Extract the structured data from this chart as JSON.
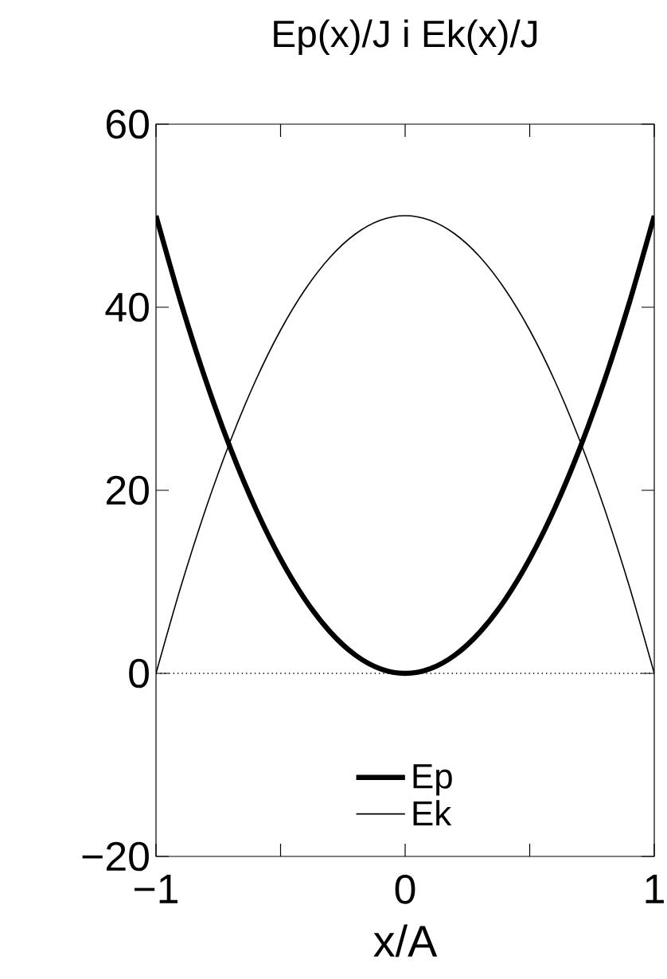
{
  "chart_data": {
    "type": "line",
    "title": "Ep(x)/J i Ek(x)/J",
    "xlabel": "x/A",
    "x": [
      -1,
      -0.9,
      -0.8,
      -0.7,
      -0.6,
      -0.5,
      -0.4,
      -0.3,
      -0.2,
      -0.1,
      0,
      0.1,
      0.2,
      0.3,
      0.4,
      0.5,
      0.6,
      0.7,
      0.8,
      0.9,
      1
    ],
    "series": [
      {
        "name": "Ep",
        "color": "#000000",
        "values": [
          50,
          40.5,
          32,
          24.5,
          18,
          12.5,
          8,
          4.5,
          2,
          0.5,
          0,
          0.5,
          2,
          4.5,
          8,
          12.5,
          18,
          24.5,
          32,
          40.5,
          50
        ]
      },
      {
        "name": "Ek",
        "color": "#000000",
        "values": [
          0,
          9.5,
          18,
          25.5,
          32,
          37.5,
          42,
          45.5,
          48,
          49.5,
          50,
          49.5,
          48,
          45.5,
          42,
          37.5,
          32,
          25.5,
          18,
          9.5,
          0
        ]
      }
    ],
    "xlim": [
      -1,
      1
    ],
    "xticks": [
      {
        "value": -1,
        "label": "−1"
      },
      {
        "value": -0.5,
        "label": null
      },
      0,
      {
        "value": 0.5,
        "label": null
      },
      1
    ],
    "ylim": [
      -20,
      60
    ],
    "yticks": [
      {
        "value": -20,
        "label": "−20"
      },
      0,
      20,
      40,
      60
    ],
    "ref_lines": [
      {
        "axis": "y",
        "value": 0,
        "label": null,
        "color": "#000000",
        "line_style": "dotted"
      }
    ],
    "legend": "bottom",
    "grid": false,
    "marker": "none",
    "line_style": "solid"
  }
}
